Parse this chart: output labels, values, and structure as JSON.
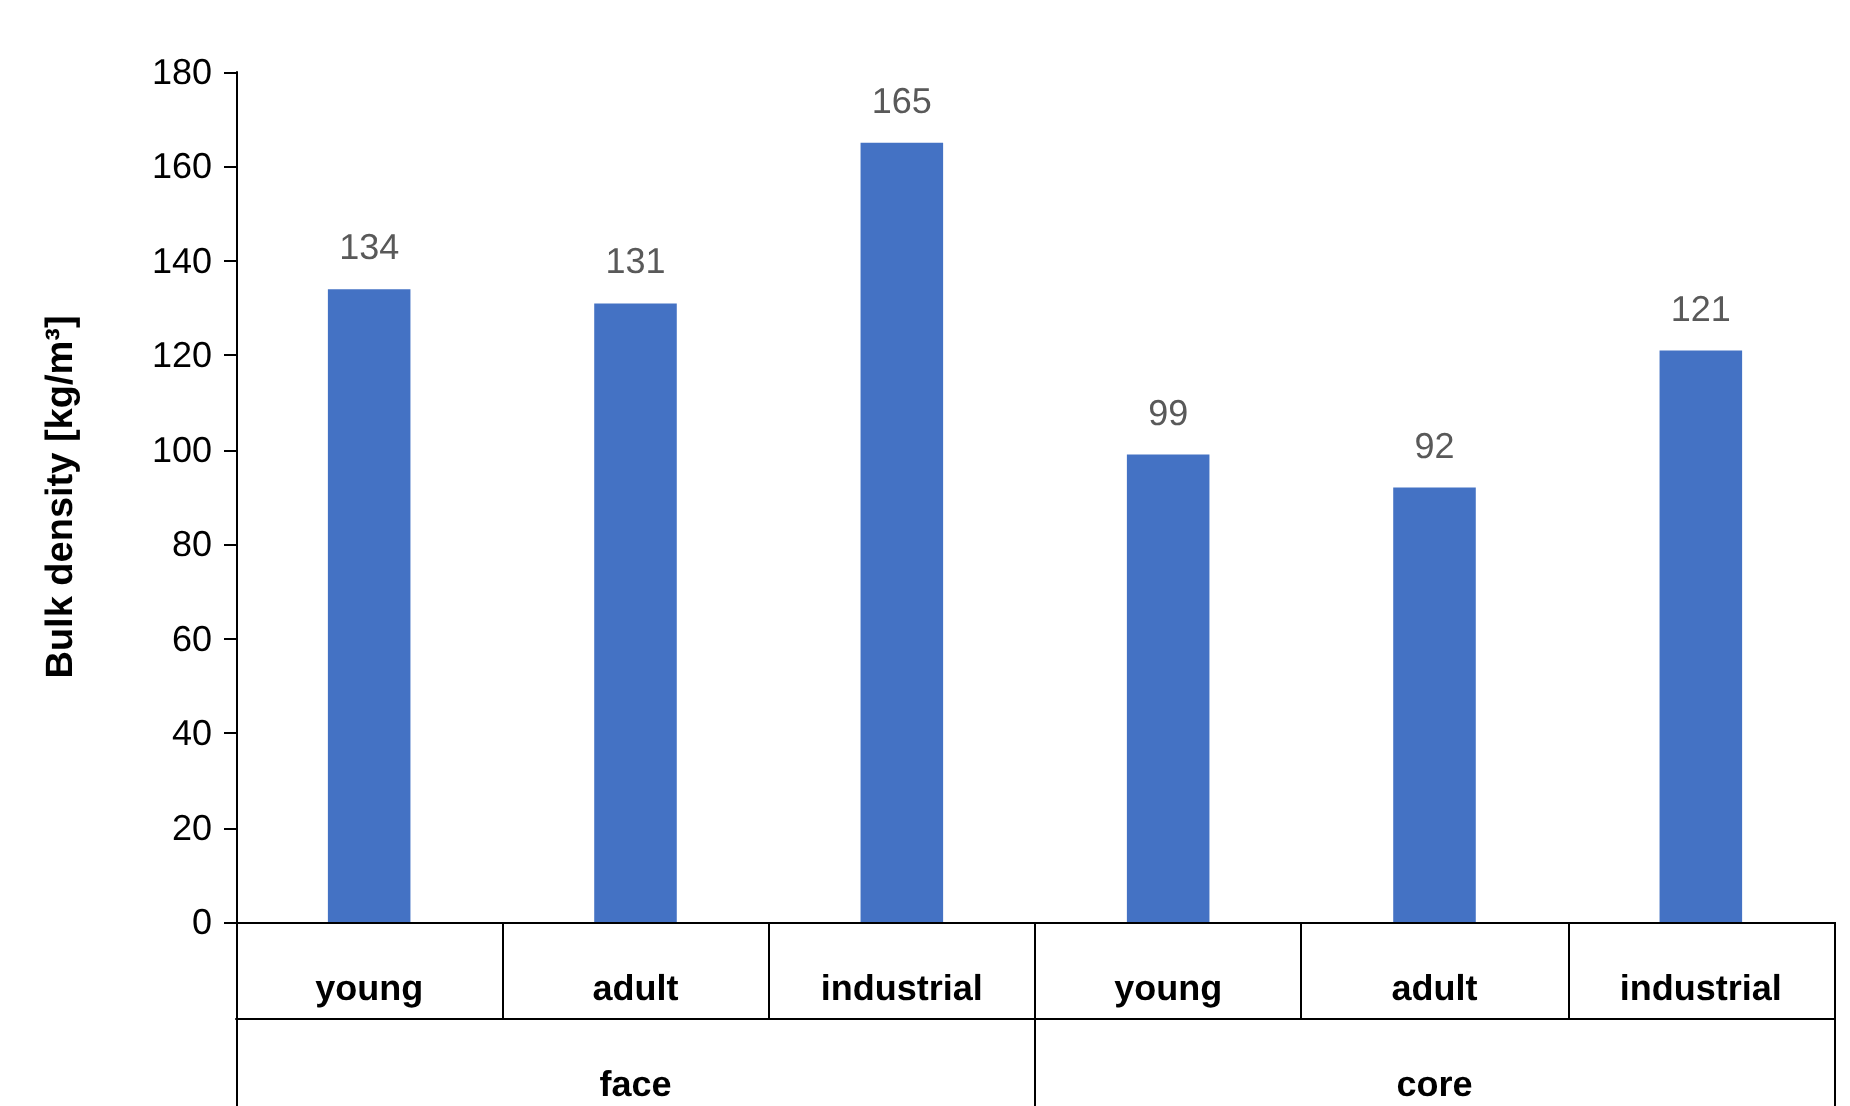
{
  "chart_data": {
    "type": "bar",
    "ylabel": "Bulk density [kg/m³]",
    "categories": [
      "young",
      "adult",
      "industrial",
      "young",
      "adult",
      "industrial"
    ],
    "values": [
      134,
      131,
      165,
      99,
      92,
      121
    ],
    "color": "#4472c4",
    "ylim": [
      0,
      180
    ],
    "yticks": [
      0,
      20,
      40,
      60,
      80,
      100,
      120,
      140,
      160,
      180
    ],
    "data_labels": true,
    "annotations": [
      "face",
      "core"
    ]
  }
}
